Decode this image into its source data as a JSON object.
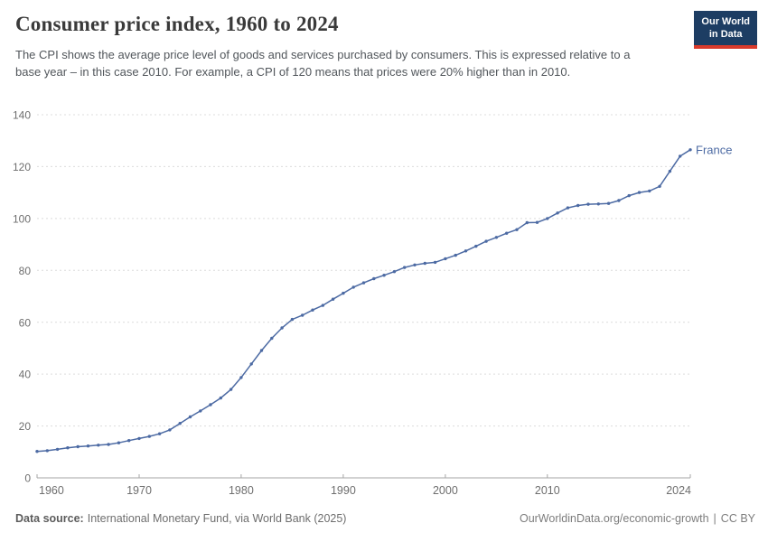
{
  "header": {
    "title": "Consumer price index, 1960 to 2024",
    "subtitle": "The CPI shows the average price level of goods and services purchased by consumers. This is expressed relative to a base year – in this case 2010. For example, a CPI of 120 means that prices were 20% higher than in 2010.",
    "logo": {
      "line1": "Our World",
      "line2": "in Data"
    }
  },
  "chart_data": {
    "type": "line",
    "title": "Consumer price index, 1960 to 2024",
    "xlabel": "",
    "ylabel": "",
    "ylim": [
      0,
      140
    ],
    "yticks": [
      0,
      20,
      40,
      60,
      80,
      100,
      120,
      140
    ],
    "xticks": [
      1960,
      1970,
      1980,
      1990,
      2000,
      2010,
      2024
    ],
    "grid": "horizontal-dashed",
    "legend": "end-of-line-label",
    "x": [
      1960,
      1961,
      1962,
      1963,
      1964,
      1965,
      1966,
      1967,
      1968,
      1969,
      1970,
      1971,
      1972,
      1973,
      1974,
      1975,
      1976,
      1977,
      1978,
      1979,
      1980,
      1981,
      1982,
      1983,
      1984,
      1985,
      1986,
      1987,
      1988,
      1989,
      1990,
      1991,
      1992,
      1993,
      1994,
      1995,
      1996,
      1997,
      1998,
      1999,
      2000,
      2001,
      2002,
      2003,
      2004,
      2005,
      2006,
      2007,
      2008,
      2009,
      2010,
      2011,
      2012,
      2013,
      2014,
      2015,
      2016,
      2017,
      2018,
      2019,
      2020,
      2021,
      2022,
      2023,
      2024
    ],
    "series": [
      {
        "name": "France",
        "color": "#4c6aa3",
        "values": [
          10.2,
          10.5,
          11.0,
          11.6,
          12.0,
          12.3,
          12.6,
          12.9,
          13.5,
          14.4,
          15.2,
          16.0,
          17.0,
          18.5,
          21.0,
          23.5,
          25.8,
          28.2,
          30.8,
          34.1,
          38.7,
          43.9,
          49.1,
          53.8,
          57.8,
          61.1,
          62.7,
          64.7,
          66.5,
          68.9,
          71.2,
          73.5,
          75.2,
          76.8,
          78.1,
          79.5,
          81.1,
          82.1,
          82.7,
          83.1,
          84.5,
          85.8,
          87.5,
          89.3,
          91.2,
          92.7,
          94.3,
          95.7,
          98.4,
          98.5,
          100.0,
          102.1,
          104.1,
          105.0,
          105.5,
          105.6,
          105.8,
          106.9,
          108.8,
          110.0,
          110.6,
          112.4,
          118.2,
          124.0,
          126.5
        ]
      }
    ]
  },
  "footer": {
    "source_label": "Data source:",
    "source_text": "International Monetary Fund, via World Bank (2025)",
    "link_text": "OurWorldinData.org/economic-growth",
    "separator": "|",
    "license": "CC BY"
  },
  "colors": {
    "line": "#4c6aa3",
    "logo_bg": "#1d3d63",
    "logo_stripe": "#d93a2b",
    "gridline": "#dcdcdc",
    "axis": "#a5a5a5",
    "tick_label": "#6e6e6e"
  }
}
